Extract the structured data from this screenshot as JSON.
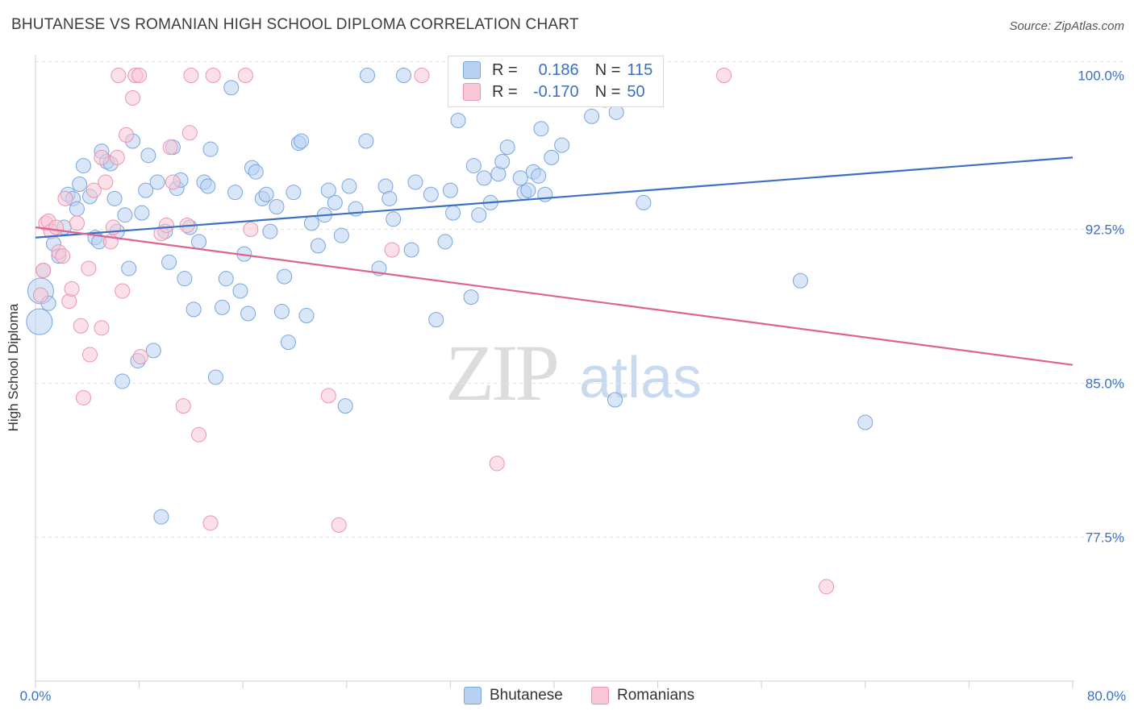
{
  "title": "BHUTANESE VS ROMANIAN HIGH SCHOOL DIPLOMA CORRELATION CHART",
  "source": "Source: ZipAtlas.com",
  "watermark": {
    "zip": "ZIP",
    "atlas": "atlas"
  },
  "legend": {
    "r_label": "R =",
    "n_label": "N =",
    "rows": [
      {
        "name": "Bhutanese",
        "r": "0.186",
        "n": "115",
        "fill": "#b8d1f3",
        "stroke": "#7aa6df"
      },
      {
        "name": "Romanians",
        "r": "-0.170",
        "n": "50",
        "fill": "#f9c6d6",
        "stroke": "#ec93b1"
      }
    ]
  },
  "chart_data": {
    "type": "scatter",
    "title": "BHUTANESE VS ROMANIAN HIGH SCHOOL DIPLOMA CORRELATION CHART",
    "xlabel": "",
    "ylabel": "High School Diploma",
    "xlim": [
      0,
      80
    ],
    "ylim": [
      70.5,
      101
    ],
    "x_tick_labels": [
      "0.0%",
      "80.0%"
    ],
    "y_ticks": [
      {
        "value": 100,
        "label": "100.0%"
      },
      {
        "value": 92.5,
        "label": "92.5%"
      },
      {
        "value": 85,
        "label": "85.0%"
      },
      {
        "value": 77.5,
        "label": "77.5%"
      }
    ],
    "grid": true,
    "series": [
      {
        "name": "Bhutanese",
        "color": "#3a70c4",
        "fill": "#b8d1f3",
        "stroke": "#7aa6df",
        "trend": {
          "x": [
            0,
            80
          ],
          "y": [
            92.1,
            96.0
          ]
        },
        "points": [
          [
            0.3,
            88.0
          ],
          [
            0.4,
            89.5
          ],
          [
            0.6,
            90.5
          ],
          [
            1.0,
            88.9
          ],
          [
            1.4,
            91.8
          ],
          [
            1.8,
            91.2
          ],
          [
            2.2,
            92.6
          ],
          [
            2.5,
            94.2
          ],
          [
            2.9,
            94.0
          ],
          [
            3.2,
            93.5
          ],
          [
            3.4,
            94.7
          ],
          [
            3.7,
            95.6
          ],
          [
            4.2,
            94.1
          ],
          [
            4.6,
            92.1
          ],
          [
            4.9,
            91.9
          ],
          [
            5.1,
            96.3
          ],
          [
            5.5,
            95.8
          ],
          [
            5.8,
            95.7
          ],
          [
            6.1,
            94.0
          ],
          [
            6.3,
            92.4
          ],
          [
            6.7,
            85.1
          ],
          [
            6.9,
            93.2
          ],
          [
            7.2,
            90.6
          ],
          [
            7.5,
            96.8
          ],
          [
            7.9,
            86.1
          ],
          [
            8.2,
            93.3
          ],
          [
            8.5,
            94.4
          ],
          [
            8.7,
            96.1
          ],
          [
            9.1,
            86.6
          ],
          [
            9.4,
            94.8
          ],
          [
            9.7,
            78.5
          ],
          [
            10.0,
            92.4
          ],
          [
            10.3,
            90.9
          ],
          [
            10.6,
            96.5
          ],
          [
            10.9,
            94.5
          ],
          [
            11.2,
            94.9
          ],
          [
            11.5,
            90.1
          ],
          [
            11.9,
            92.6
          ],
          [
            12.2,
            88.6
          ],
          [
            12.6,
            91.9
          ],
          [
            13.0,
            94.8
          ],
          [
            13.3,
            94.6
          ],
          [
            13.5,
            96.4
          ],
          [
            13.9,
            85.3
          ],
          [
            14.4,
            88.7
          ],
          [
            14.7,
            90.1
          ],
          [
            15.1,
            99.4
          ],
          [
            15.4,
            94.3
          ],
          [
            15.8,
            89.5
          ],
          [
            16.1,
            91.3
          ],
          [
            16.4,
            88.4
          ],
          [
            16.7,
            95.5
          ],
          [
            17.0,
            95.3
          ],
          [
            17.5,
            94.0
          ],
          [
            17.8,
            94.2
          ],
          [
            18.1,
            92.4
          ],
          [
            18.6,
            93.6
          ],
          [
            19.0,
            88.5
          ],
          [
            19.2,
            90.2
          ],
          [
            19.5,
            87.0
          ],
          [
            19.9,
            94.3
          ],
          [
            20.3,
            96.7
          ],
          [
            20.5,
            96.8
          ],
          [
            20.9,
            88.3
          ],
          [
            21.3,
            92.8
          ],
          [
            21.8,
            91.7
          ],
          [
            22.3,
            93.2
          ],
          [
            22.6,
            94.4
          ],
          [
            23.1,
            93.8
          ],
          [
            23.6,
            92.2
          ],
          [
            23.9,
            83.9
          ],
          [
            24.2,
            94.6
          ],
          [
            24.7,
            93.5
          ],
          [
            25.5,
            96.8
          ],
          [
            25.6,
            100.0
          ],
          [
            26.5,
            90.6
          ],
          [
            27.0,
            94.6
          ],
          [
            27.3,
            94.0
          ],
          [
            27.6,
            93.0
          ],
          [
            28.4,
            100.0
          ],
          [
            29.0,
            91.5
          ],
          [
            29.3,
            94.8
          ],
          [
            30.5,
            94.2
          ],
          [
            30.9,
            88.1
          ],
          [
            31.6,
            91.9
          ],
          [
            32.0,
            94.4
          ],
          [
            32.2,
            93.3
          ],
          [
            32.6,
            97.8
          ],
          [
            33.6,
            89.2
          ],
          [
            33.8,
            95.6
          ],
          [
            34.2,
            93.2
          ],
          [
            34.6,
            95.0
          ],
          [
            35.1,
            93.8
          ],
          [
            35.7,
            95.2
          ],
          [
            36.0,
            95.8
          ],
          [
            36.4,
            96.5
          ],
          [
            37.4,
            95.0
          ],
          [
            37.7,
            94.3
          ],
          [
            38.0,
            94.4
          ],
          [
            38.4,
            95.3
          ],
          [
            38.8,
            95.1
          ],
          [
            39.0,
            97.4
          ],
          [
            39.3,
            94.2
          ],
          [
            39.8,
            96.0
          ],
          [
            40.6,
            96.6
          ],
          [
            42.9,
            98.0
          ],
          [
            43.2,
            100.0
          ],
          [
            43.9,
            98.8
          ],
          [
            44.7,
            84.2
          ],
          [
            44.8,
            98.2
          ],
          [
            46.9,
            93.8
          ],
          [
            59.0,
            90.0
          ],
          [
            64.0,
            83.1
          ]
        ],
        "point_sizes": {
          "0.3,88.0": "large",
          "0.4,89.5": "large"
        }
      },
      {
        "name": "Romanians",
        "color": "#e0628f",
        "fill": "#f9c6d6",
        "stroke": "#ec93b1",
        "trend": {
          "x": [
            0,
            80
          ],
          "y": [
            92.6,
            85.9
          ]
        },
        "points": [
          [
            0.4,
            89.3
          ],
          [
            0.6,
            90.5
          ],
          [
            0.8,
            92.8
          ],
          [
            1.0,
            92.9
          ],
          [
            1.2,
            92.4
          ],
          [
            1.6,
            92.6
          ],
          [
            1.8,
            91.4
          ],
          [
            2.1,
            91.2
          ],
          [
            2.3,
            94.0
          ],
          [
            2.6,
            89.0
          ],
          [
            2.8,
            89.6
          ],
          [
            3.2,
            92.8
          ],
          [
            3.5,
            87.8
          ],
          [
            3.7,
            84.3
          ],
          [
            4.1,
            90.6
          ],
          [
            4.2,
            86.4
          ],
          [
            4.5,
            94.4
          ],
          [
            5.1,
            96.0
          ],
          [
            5.1,
            87.7
          ],
          [
            5.4,
            94.8
          ],
          [
            5.8,
            91.9
          ],
          [
            6.0,
            92.6
          ],
          [
            6.3,
            96.0
          ],
          [
            6.4,
            100.0
          ],
          [
            6.7,
            89.5
          ],
          [
            7.0,
            97.1
          ],
          [
            7.5,
            98.9
          ],
          [
            7.7,
            100.0
          ],
          [
            8.0,
            100.0
          ],
          [
            8.1,
            86.3
          ],
          [
            9.7,
            92.3
          ],
          [
            10.1,
            92.7
          ],
          [
            10.4,
            96.5
          ],
          [
            10.6,
            94.8
          ],
          [
            11.4,
            83.9
          ],
          [
            11.7,
            92.7
          ],
          [
            11.9,
            97.2
          ],
          [
            12.0,
            100.0
          ],
          [
            12.6,
            82.5
          ],
          [
            13.5,
            78.2
          ],
          [
            13.7,
            100.0
          ],
          [
            16.2,
            100.0
          ],
          [
            16.6,
            92.5
          ],
          [
            22.6,
            84.4
          ],
          [
            23.4,
            78.1
          ],
          [
            27.5,
            91.5
          ],
          [
            29.8,
            100.0
          ],
          [
            35.6,
            81.1
          ],
          [
            53.1,
            100.0
          ],
          [
            61.0,
            75.1
          ]
        ]
      }
    ]
  }
}
